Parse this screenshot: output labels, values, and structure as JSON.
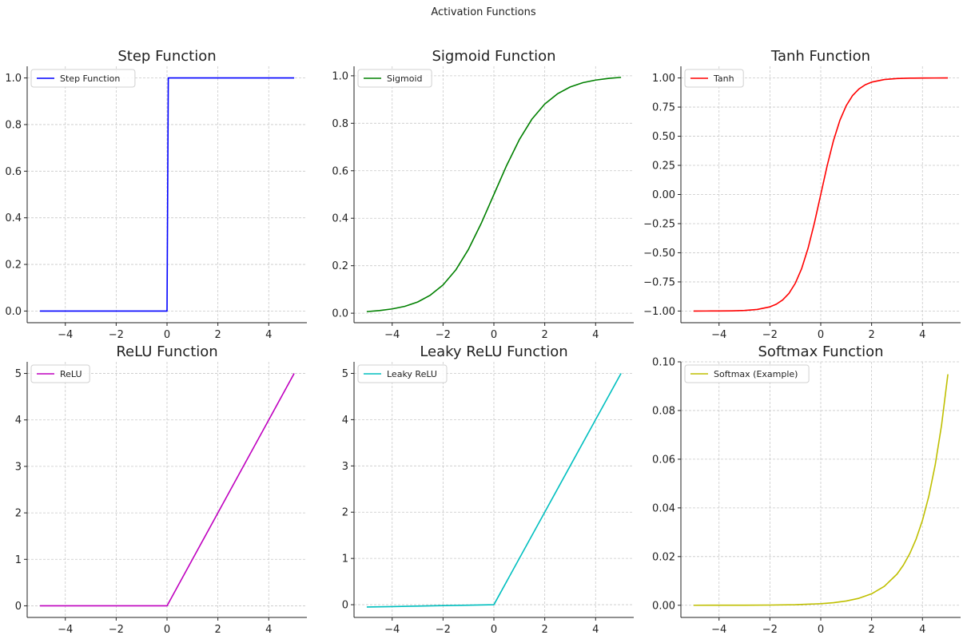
{
  "figure": {
    "title": "Activation Functions"
  },
  "chart_data": [
    {
      "type": "line",
      "title": "Step Function",
      "xlabel": "",
      "ylabel": "",
      "xlim": [
        -5.5,
        5.5
      ],
      "ylim": [
        -0.05,
        1.05
      ],
      "xticks": [
        -4,
        -2,
        0,
        2,
        4
      ],
      "xtick_labels": [
        "−4",
        "−2",
        "0",
        "2",
        "4"
      ],
      "yticks": [
        0,
        0.2,
        0.4,
        0.6,
        0.8,
        1.0
      ],
      "ytick_labels": [
        "0.0",
        "0.2",
        "0.4",
        "0.6",
        "0.8",
        "1.0"
      ],
      "grid": true,
      "legend_position": "upper-left",
      "series": [
        {
          "name": "Step Function",
          "color": "#0000ff",
          "x": [
            -5,
            -4,
            -3,
            -2,
            -1,
            0,
            0.05,
            1,
            2,
            3,
            4,
            5
          ],
          "y": [
            0,
            0,
            0,
            0,
            0,
            0,
            1,
            1,
            1,
            1,
            1,
            1
          ]
        }
      ]
    },
    {
      "type": "line",
      "title": "Sigmoid Function",
      "xlabel": "",
      "ylabel": "",
      "xlim": [
        -5.5,
        5.5
      ],
      "ylim": [
        -0.04,
        1.04
      ],
      "xticks": [
        -4,
        -2,
        0,
        2,
        4
      ],
      "xtick_labels": [
        "−4",
        "−2",
        "0",
        "2",
        "4"
      ],
      "yticks": [
        0,
        0.2,
        0.4,
        0.6,
        0.8,
        1.0
      ],
      "ytick_labels": [
        "0.0",
        "0.2",
        "0.4",
        "0.6",
        "0.8",
        "1.0"
      ],
      "grid": true,
      "legend_position": "upper-left",
      "series": [
        {
          "name": "Sigmoid",
          "color": "#008000",
          "x": [
            -5,
            -4.5,
            -4,
            -3.5,
            -3,
            -2.5,
            -2,
            -1.5,
            -1,
            -0.5,
            0,
            0.5,
            1,
            1.5,
            2,
            2.5,
            3,
            3.5,
            4,
            4.5,
            5
          ],
          "y": [
            0.0067,
            0.011,
            0.018,
            0.029,
            0.047,
            0.076,
            0.119,
            0.182,
            0.269,
            0.378,
            0.5,
            0.622,
            0.731,
            0.818,
            0.881,
            0.924,
            0.953,
            0.971,
            0.982,
            0.989,
            0.9933
          ]
        }
      ]
    },
    {
      "type": "line",
      "title": "Tanh Function",
      "xlabel": "",
      "ylabel": "",
      "xlim": [
        -5.5,
        5.5
      ],
      "ylim": [
        -1.1,
        1.1
      ],
      "xticks": [
        -4,
        -2,
        0,
        2,
        4
      ],
      "xtick_labels": [
        "−4",
        "−2",
        "0",
        "2",
        "4"
      ],
      "yticks": [
        -1.0,
        -0.75,
        -0.5,
        -0.25,
        0,
        0.25,
        0.5,
        0.75,
        1.0
      ],
      "ytick_labels": [
        "−1.00",
        "−0.75",
        "−0.50",
        "−0.25",
        "0.00",
        "0.25",
        "0.50",
        "0.75",
        "1.00"
      ],
      "grid": true,
      "legend_position": "upper-left",
      "series": [
        {
          "name": "Tanh",
          "color": "#ff0000",
          "x": [
            -5,
            -4.5,
            -4,
            -3.5,
            -3,
            -2.5,
            -2,
            -1.75,
            -1.5,
            -1.25,
            -1,
            -0.75,
            -0.5,
            -0.25,
            0,
            0.25,
            0.5,
            0.75,
            1,
            1.25,
            1.5,
            1.75,
            2,
            2.5,
            3,
            3.5,
            4,
            4.5,
            5
          ],
          "y": [
            -0.9999,
            -0.9998,
            -0.9993,
            -0.9982,
            -0.9951,
            -0.9866,
            -0.964,
            -0.9414,
            -0.9051,
            -0.8483,
            -0.7616,
            -0.6351,
            -0.4621,
            -0.2449,
            0,
            0.2449,
            0.4621,
            0.6351,
            0.7616,
            0.8483,
            0.9051,
            0.9414,
            0.964,
            0.9866,
            0.9951,
            0.9982,
            0.9993,
            0.9998,
            0.9999
          ]
        }
      ]
    },
    {
      "type": "line",
      "title": "ReLU Function",
      "xlabel": "",
      "ylabel": "",
      "xlim": [
        -5.5,
        5.5
      ],
      "ylim": [
        -0.25,
        5.25
      ],
      "xticks": [
        -4,
        -2,
        0,
        2,
        4
      ],
      "xtick_labels": [
        "−4",
        "−2",
        "0",
        "2",
        "4"
      ],
      "yticks": [
        0,
        1,
        2,
        3,
        4,
        5
      ],
      "ytick_labels": [
        "0",
        "1",
        "2",
        "3",
        "4",
        "5"
      ],
      "grid": true,
      "legend_position": "upper-left",
      "series": [
        {
          "name": "ReLU",
          "color": "#bf00bf",
          "x": [
            -5,
            -4,
            -3,
            -2,
            -1,
            0,
            1,
            2,
            3,
            4,
            5
          ],
          "y": [
            0,
            0,
            0,
            0,
            0,
            0,
            1,
            2,
            3,
            4,
            5
          ]
        }
      ]
    },
    {
      "type": "line",
      "title": "Leaky ReLU Function",
      "xlabel": "",
      "ylabel": "",
      "xlim": [
        -5.5,
        5.5
      ],
      "ylim": [
        -0.275,
        5.25
      ],
      "xticks": [
        -4,
        -2,
        0,
        2,
        4
      ],
      "xtick_labels": [
        "−4",
        "−2",
        "0",
        "2",
        "4"
      ],
      "yticks": [
        0,
        1,
        2,
        3,
        4,
        5
      ],
      "ytick_labels": [
        "0",
        "1",
        "2",
        "3",
        "4",
        "5"
      ],
      "grid": true,
      "legend_position": "upper-left",
      "series": [
        {
          "name": "Leaky ReLU",
          "color": "#00bfbf",
          "x": [
            -5,
            -4,
            -3,
            -2,
            -1,
            0,
            1,
            2,
            3,
            4,
            5
          ],
          "y": [
            -0.05,
            -0.04,
            -0.03,
            -0.02,
            -0.01,
            0,
            1,
            2,
            3,
            4,
            5
          ]
        }
      ]
    },
    {
      "type": "line",
      "title": "Softmax Function",
      "xlabel": "",
      "ylabel": "",
      "xlim": [
        -5.5,
        5.5
      ],
      "ylim": [
        -0.005,
        0.1
      ],
      "xticks": [
        -4,
        -2,
        0,
        2,
        4
      ],
      "xtick_labels": [
        "−4",
        "−2",
        "0",
        "2",
        "4"
      ],
      "yticks": [
        0,
        0.02,
        0.04,
        0.06,
        0.08,
        0.1
      ],
      "ytick_labels": [
        "0.00",
        "0.02",
        "0.04",
        "0.06",
        "0.08",
        "0.10"
      ],
      "grid": true,
      "legend_position": "upper-left",
      "series": [
        {
          "name": "Softmax (Example)",
          "color": "#bfbf00",
          "x": [
            -5,
            -4,
            -3,
            -2,
            -1,
            0,
            0.5,
            1,
            1.5,
            2,
            2.5,
            3,
            3.25,
            3.5,
            3.75,
            4,
            4.25,
            4.5,
            4.75,
            5
          ],
          "y": [
            4.3e-06,
            1.17e-05,
            3.18e-05,
            8.64e-05,
            0.000235,
            0.000639,
            0.00105,
            0.00174,
            0.00286,
            0.00472,
            0.00778,
            0.0128,
            0.0165,
            0.0212,
            0.0272,
            0.0349,
            0.0448,
            0.0576,
            0.0739,
            0.0949
          ]
        }
      ]
    }
  ]
}
